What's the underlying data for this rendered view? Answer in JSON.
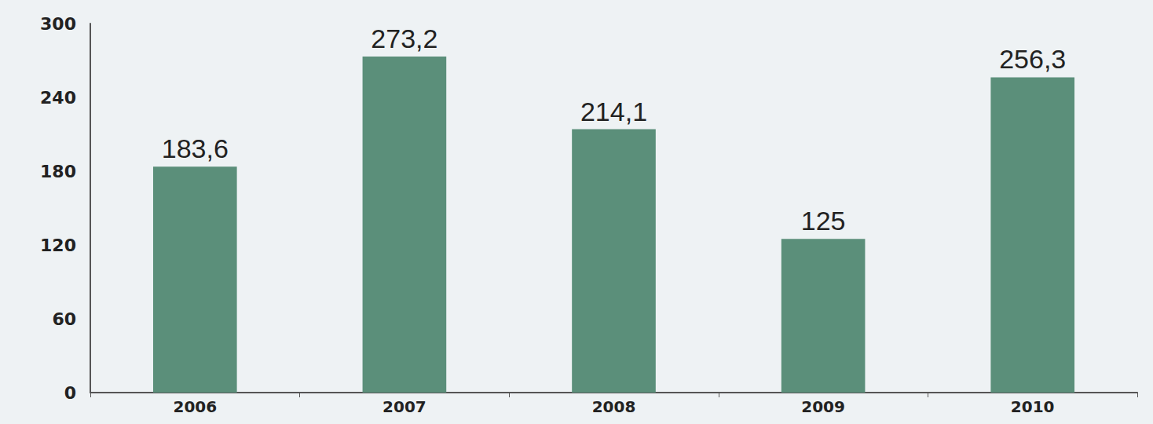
{
  "chart_data": {
    "type": "bar",
    "categories": [
      "2006",
      "2007",
      "2008",
      "2009",
      "2010"
    ],
    "values": [
      183.6,
      273.2,
      214.1,
      125,
      256.3
    ],
    "value_labels": [
      "183,6",
      "273,2",
      "214,1",
      "125",
      "256,3"
    ],
    "color": "#5b8f7a",
    "ylim": [
      0,
      300
    ],
    "yticks": [
      0,
      60,
      120,
      180,
      240,
      300
    ],
    "grid": false,
    "data_labels": true
  }
}
